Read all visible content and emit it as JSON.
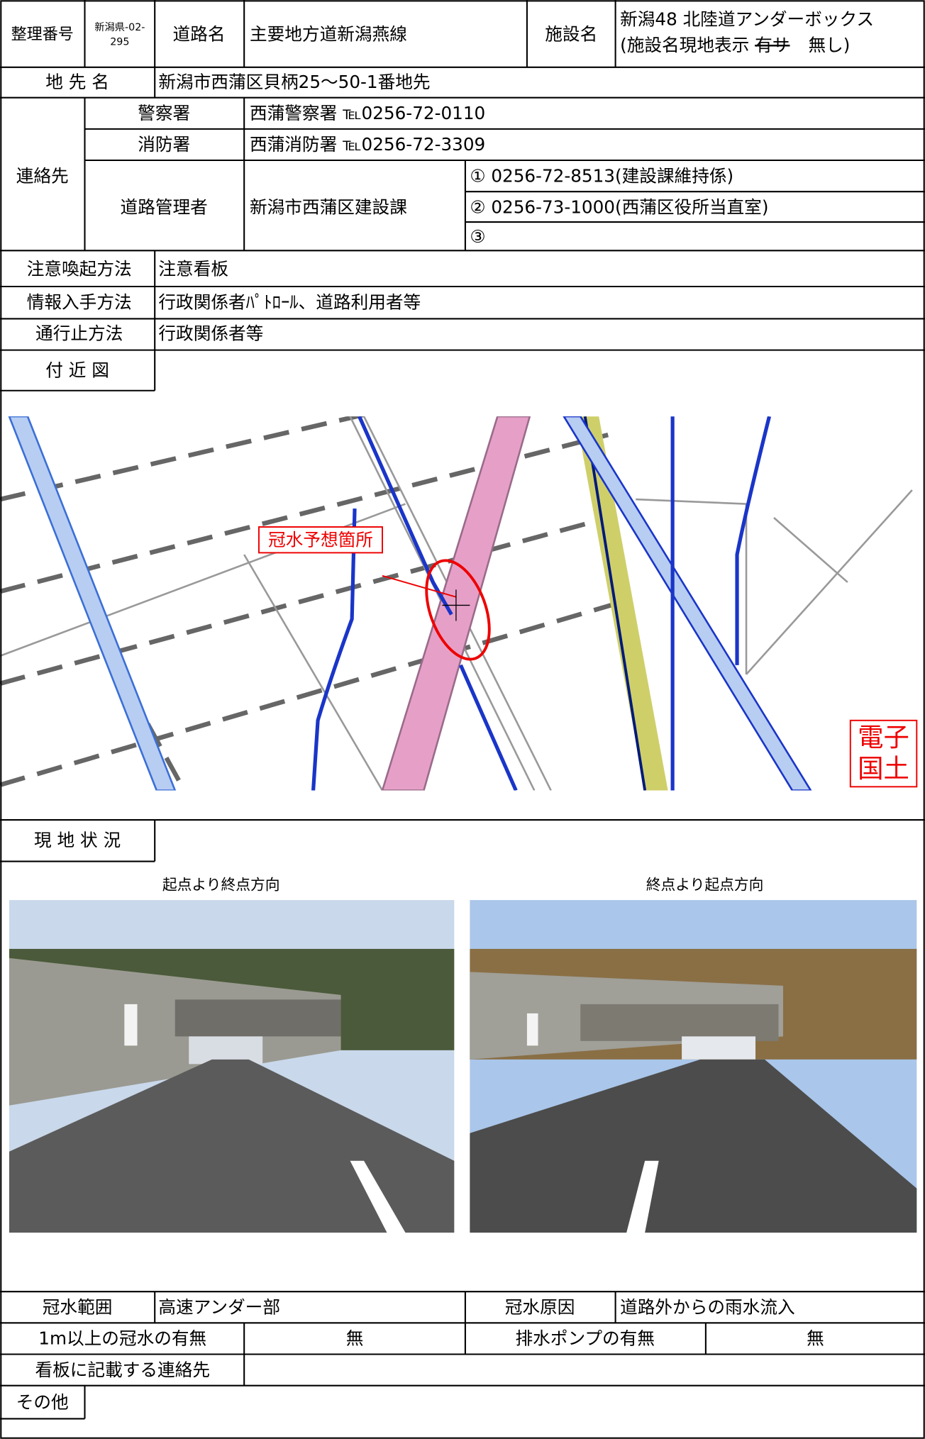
{
  "header": {
    "id_label": "整理番号",
    "id_line1": "新潟県-02-",
    "id_line2": "295",
    "road_label": "道路名",
    "road": "主要地方道新潟燕線",
    "facility_label": "施設名",
    "facility_line1": "新潟48 北陸道アンダーボックス",
    "facility_line2_start": "(施設名現地表示 ",
    "facility_struck": "有サ",
    "facility_line2_end": "無し)"
  },
  "location": {
    "label": "地 先 名",
    "value": "新潟市西蒲区貝柄25〜50-1番地先"
  },
  "contacts": {
    "label": "連絡先",
    "police": {
      "label": "警察署",
      "value": "西蒲警察署 ℡0256-72-0110"
    },
    "fire": {
      "label": "消防署",
      "value": "西蒲消防署 ℡0256-72-3309"
    },
    "road_admin": {
      "label": "道路管理者",
      "name": "新潟市西蒲区建設課",
      "phones": [
        "① 0256-72-8513(建設課維持係)",
        "② 0256-73-1000(西蒲区役所当直室)",
        "③"
      ]
    }
  },
  "warning_method": {
    "label": "注意喚起方法",
    "value": "注意看板"
  },
  "info_method": {
    "label": "情報入手方法",
    "value": "行政関係者ﾊﾟﾄﾛｰﾙ、道路利用者等"
  },
  "closure_method": {
    "label": "通行止方法",
    "value": "行政関係者等"
  },
  "map": {
    "label": "付 近 図",
    "annotation": "冠水予想箇所",
    "stamp": [
      "電子",
      "国土"
    ]
  },
  "site": {
    "label": "現 地 状 況",
    "photos": [
      {
        "caption": "起点より終点方向"
      },
      {
        "caption": "終点より起点方向"
      }
    ]
  },
  "footer": {
    "flood_range_label": "冠水範囲",
    "flood_range": "高速アンダー部",
    "flood_cause_label": "冠水原因",
    "flood_cause": "道路外からの雨水流入",
    "deep_flood_label": "1m以上の冠水の有無",
    "deep_flood": "無",
    "pump_label": "排水ポンプの有無",
    "pump": "無",
    "sign_contact_label": "看板に記載する連絡先",
    "other_label": "その他"
  }
}
